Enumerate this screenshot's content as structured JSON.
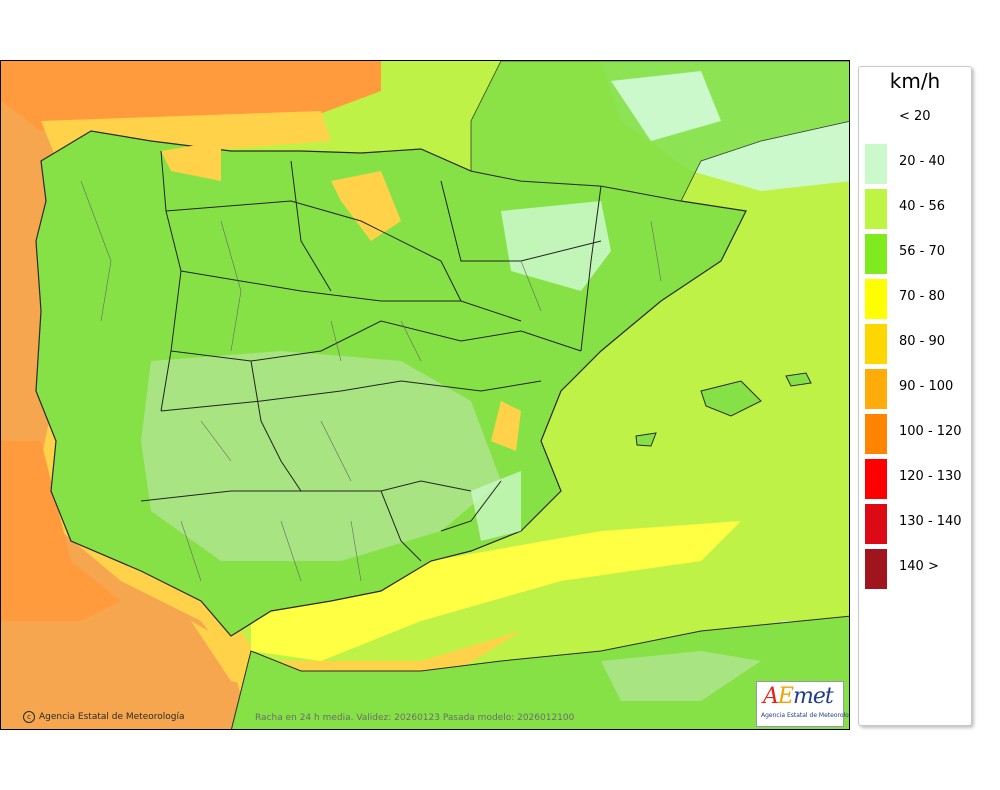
{
  "map": {
    "copyright": "Agencia Estatal de Meteorología",
    "caption": "Racha en 24 h media. Validez: 20260123 Pasada modelo: 2026012100",
    "logo": {
      "word": "AEmet",
      "subtitle": "Agencia Estatal de Meteorología"
    }
  },
  "legend": {
    "title": "km/h",
    "items": [
      {
        "label": "< 20",
        "color": "#ffffff"
      },
      {
        "label": "20 - 40",
        "color": "#ccf9cc"
      },
      {
        "label": "40 - 56",
        "color": "#bdf542"
      },
      {
        "label": "56 - 70",
        "color": "#7fea1e"
      },
      {
        "label": "70 - 80",
        "color": "#ffff00"
      },
      {
        "label": "80 - 90",
        "color": "#ffd700"
      },
      {
        "label": "90 - 100",
        "color": "#ffab0a"
      },
      {
        "label": "100 - 120",
        "color": "#ff8500"
      },
      {
        "label": "120 - 130",
        "color": "#ff0000"
      },
      {
        "label": "130 - 140",
        "color": "#dc0a14"
      },
      {
        "label": "140 >",
        "color": "#a0141e"
      }
    ]
  }
}
